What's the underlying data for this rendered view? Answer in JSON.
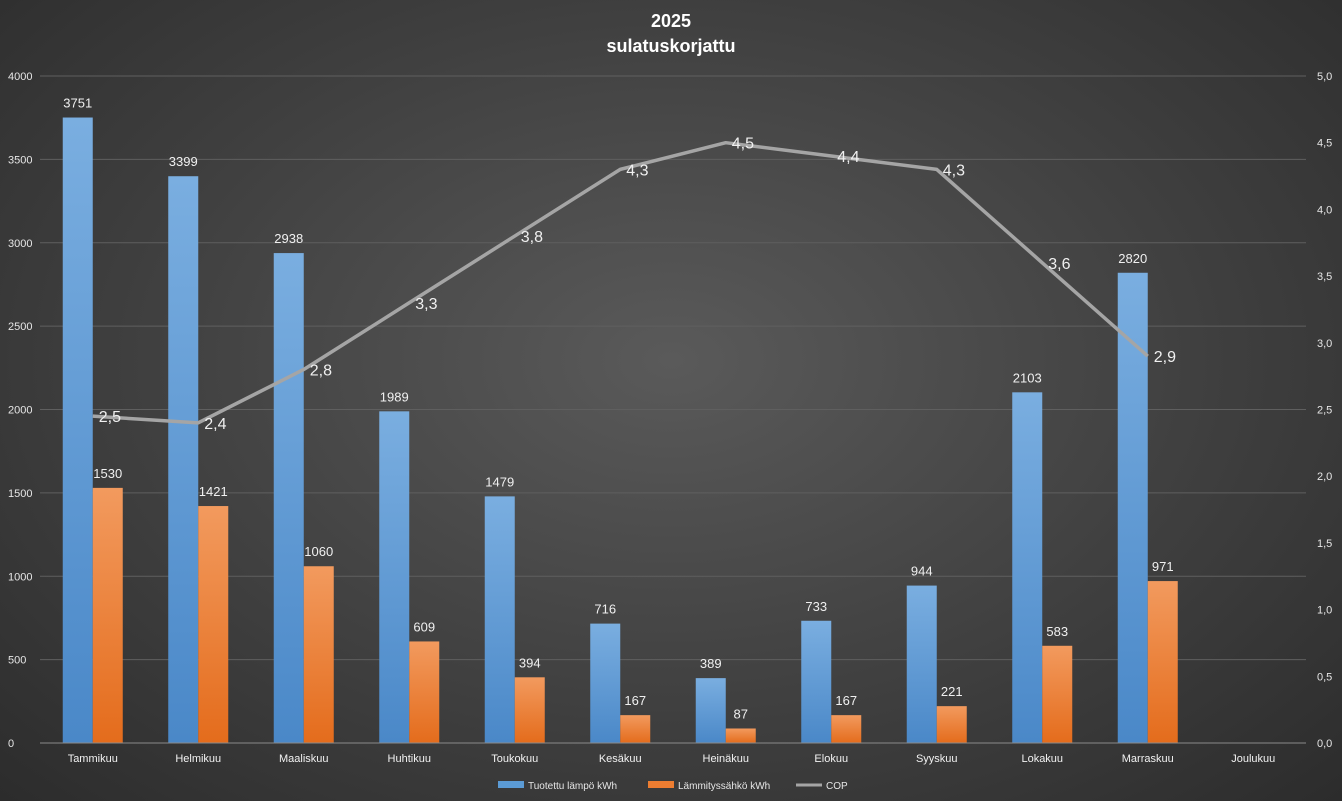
{
  "chart_data": {
    "type": "bar",
    "title": "2025",
    "subtitle": "sulatuskorjattu",
    "categories": [
      "Tammikuu",
      "Helmikuu",
      "Maaliskuu",
      "Huhtikuu",
      "Toukokuu",
      "Kesäkuu",
      "Heinäkuu",
      "Elokuu",
      "Syyskuu",
      "Lokakuu",
      "Marraskuu",
      "Joulukuu"
    ],
    "series": [
      {
        "name": "Tuotettu lämpö kWh",
        "type": "bar",
        "axis": "left",
        "color": "#5b9bd5",
        "values": [
          3751,
          3399,
          2938,
          1989,
          1479,
          716,
          389,
          733,
          944,
          2103,
          2820,
          null
        ]
      },
      {
        "name": "Lämmityssähkö kWh",
        "type": "bar",
        "axis": "left",
        "color": "#ed7d31",
        "values": [
          1530,
          1421,
          1060,
          609,
          394,
          167,
          87,
          167,
          221,
          583,
          971,
          null
        ]
      },
      {
        "name": "COP",
        "type": "line",
        "axis": "right",
        "color": "#a5a5a5",
        "values": [
          2.45,
          2.4,
          2.8,
          3.3,
          3.8,
          4.3,
          4.5,
          4.4,
          4.3,
          3.6,
          2.9,
          null
        ],
        "labels": [
          "2,5",
          "2,4",
          "2,8",
          "3,3",
          "3,8",
          "4,3",
          "4,5",
          "4,4",
          "4,3",
          "3,6",
          "2,9",
          null
        ]
      }
    ],
    "ylim": [
      0,
      4000
    ],
    "yticks": [
      "0",
      "500",
      "1000",
      "1500",
      "2000",
      "2500",
      "3000",
      "3500",
      "4000"
    ],
    "y2lim": [
      0,
      5
    ],
    "y2ticks": [
      "0,0",
      "0,5",
      "1,0",
      "1,5",
      "2,0",
      "2,5",
      "3,0",
      "3,5",
      "4,0",
      "4,5",
      "5,0"
    ],
    "legend_position": "bottom",
    "grid": true
  }
}
